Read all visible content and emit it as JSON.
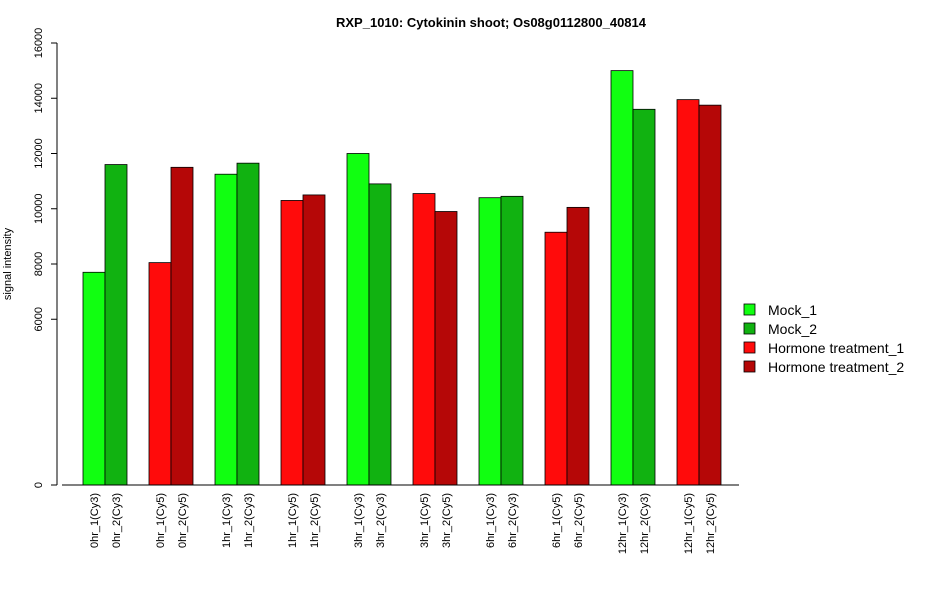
{
  "chart_data": {
    "type": "bar",
    "title": "RXP_1010: Cytokinin shoot; Os08g0112800_40814",
    "xlabel": "",
    "ylabel": "signal intensity",
    "ylim": [
      0,
      16000
    ],
    "y_ticks": [
      0,
      6000,
      8000,
      10000,
      12000,
      14000,
      16000
    ],
    "grid": false,
    "legend_position": "right",
    "series_colors": {
      "Mock_1": "#11ff11",
      "Mock_2": "#11b211",
      "Hormone treatment_1": "#ff0b0b",
      "Hormone treatment_2": "#b50707"
    },
    "groups": [
      {
        "bars": [
          {
            "label": "0hr_1(Cy3)",
            "value": 7700,
            "series": "Mock_1"
          },
          {
            "label": "0hr_2(Cy3)",
            "value": 11600,
            "series": "Mock_2"
          }
        ]
      },
      {
        "bars": [
          {
            "label": "0hr_1(Cy5)",
            "value": 8050,
            "series": "Hormone treatment_1"
          },
          {
            "label": "0hr_2(Cy5)",
            "value": 11500,
            "series": "Hormone treatment_2"
          }
        ]
      },
      {
        "bars": [
          {
            "label": "1hr_1(Cy3)",
            "value": 11250,
            "series": "Mock_1"
          },
          {
            "label": "1hr_2(Cy3)",
            "value": 11650,
            "series": "Mock_2"
          }
        ]
      },
      {
        "bars": [
          {
            "label": "1hr_1(Cy5)",
            "value": 10300,
            "series": "Hormone treatment_1"
          },
          {
            "label": "1hr_2(Cy5)",
            "value": 10500,
            "series": "Hormone treatment_2"
          }
        ]
      },
      {
        "bars": [
          {
            "label": "3hr_1(Cy3)",
            "value": 12000,
            "series": "Mock_1"
          },
          {
            "label": "3hr_2(Cy3)",
            "value": 10900,
            "series": "Mock_2"
          }
        ]
      },
      {
        "bars": [
          {
            "label": "3hr_1(Cy5)",
            "value": 10550,
            "series": "Hormone treatment_1"
          },
          {
            "label": "3hr_2(Cy5)",
            "value": 9900,
            "series": "Hormone treatment_2"
          }
        ]
      },
      {
        "bars": [
          {
            "label": "6hr_1(Cy3)",
            "value": 10400,
            "series": "Mock_1"
          },
          {
            "label": "6hr_2(Cy3)",
            "value": 10450,
            "series": "Mock_2"
          }
        ]
      },
      {
        "bars": [
          {
            "label": "6hr_1(Cy5)",
            "value": 9150,
            "series": "Hormone treatment_1"
          },
          {
            "label": "6hr_2(Cy5)",
            "value": 10050,
            "series": "Hormone treatment_2"
          }
        ]
      },
      {
        "bars": [
          {
            "label": "12hr_1(Cy3)",
            "value": 15000,
            "series": "Mock_1"
          },
          {
            "label": "12hr_2(Cy3)",
            "value": 13600,
            "series": "Mock_2"
          }
        ]
      },
      {
        "bars": [
          {
            "label": "12hr_1(Cy5)",
            "value": 13950,
            "series": "Hormone treatment_1"
          },
          {
            "label": "12hr_2(Cy5)",
            "value": 13750,
            "series": "Hormone treatment_2"
          }
        ]
      }
    ],
    "legend": [
      "Mock_1",
      "Mock_2",
      "Hormone treatment_1",
      "Hormone treatment_2"
    ]
  }
}
